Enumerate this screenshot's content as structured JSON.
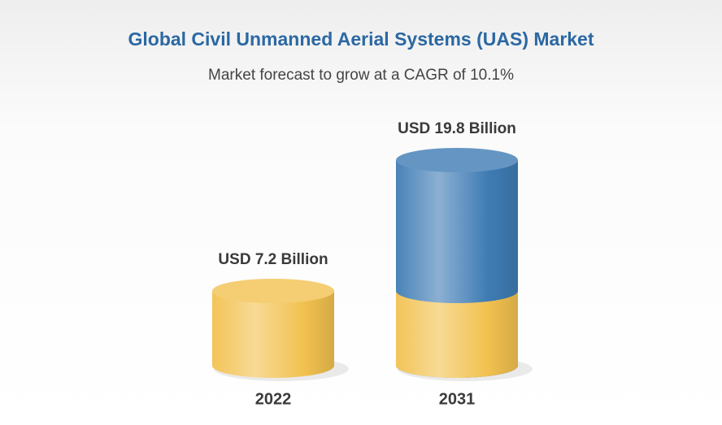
{
  "chart_data": {
    "type": "cylinder",
    "title": "Global Civil Unmanned Aerial Systems (UAS) Market",
    "subtitle": "Market forecast to grow at a CAGR of 10.1%",
    "categories": [
      "2022",
      "2031"
    ],
    "values": [
      7.2,
      19.8
    ],
    "value_labels": [
      "USD 7.2 Billion",
      "USD 19.8 Billion"
    ],
    "colors": [
      "#f2c14f",
      "#3f7cb4"
    ]
  }
}
